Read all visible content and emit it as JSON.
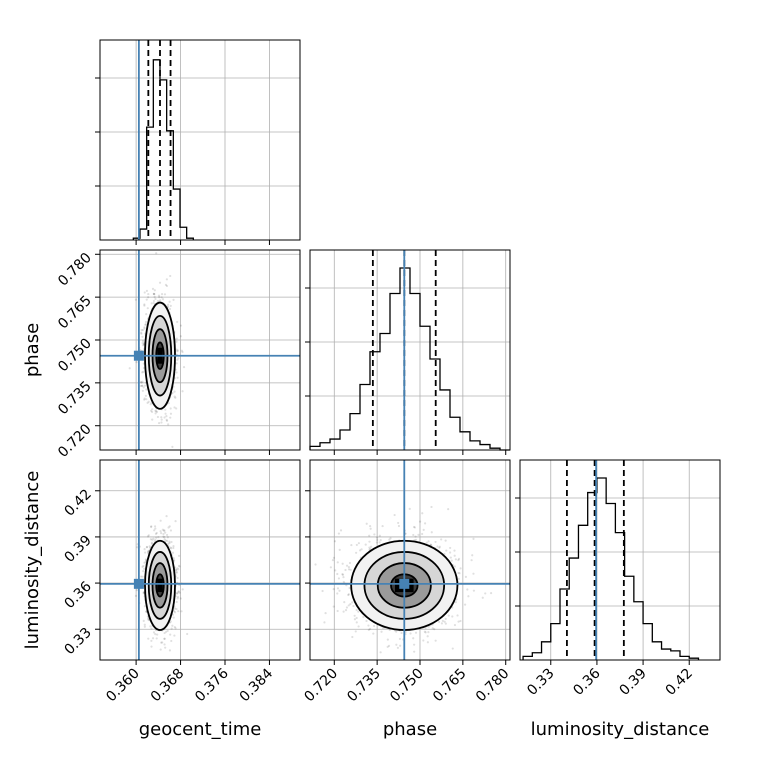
{
  "chart_data": {
    "type": "corner",
    "parameters": [
      "geocent_time",
      "phase",
      "luminosity_distance"
    ],
    "truths": {
      "geocent_time": 0.3605,
      "phase": 0.7445,
      "luminosity_distance": 0.3595
    },
    "truth_color": "#4682b4",
    "ranges": {
      "geocent_time": [
        0.3535,
        0.3895
      ],
      "phase": [
        0.7115,
        0.7815
      ],
      "luminosity_distance": [
        0.31,
        0.44
      ]
    },
    "ticks": {
      "geocent_time": [
        0.36,
        0.368,
        0.376,
        0.384
      ],
      "phase": [
        0.72,
        0.735,
        0.75,
        0.765,
        0.78
      ],
      "luminosity_distance": [
        0.33,
        0.36,
        0.39,
        0.42
      ]
    },
    "tick_labels": {
      "geocent_time": [
        "0.360",
        "0.368",
        "0.376",
        "0.384"
      ],
      "phase": [
        "0.720",
        "0.735",
        "0.750",
        "0.765",
        "0.780"
      ],
      "luminosity_distance": [
        "0.33",
        "0.36",
        "0.39",
        "0.42"
      ]
    },
    "row_tick_labels": {
      "phase": [
        "0.720",
        "0.735",
        "0.750",
        "0.765",
        "0.780"
      ],
      "luminosity_distance": [
        "0.33",
        "0.36",
        "0.39",
        "0.42"
      ]
    },
    "axis_labels": {
      "x": [
        "geocent_time",
        "phase",
        "luminosity_distance"
      ],
      "y": [
        "phase",
        "luminosity_distance"
      ]
    },
    "quantiles": {
      "geocent_time": [
        0.3622,
        0.3643,
        0.3662
      ],
      "phase": [
        0.7335,
        0.7445,
        0.7555
      ],
      "luminosity_distance": [
        0.3405,
        0.3585,
        0.3775
      ]
    },
    "histograms": {
      "geocent_time": {
        "bin_edges": [
          0.3595,
          0.3607,
          0.3619,
          0.3631,
          0.3643,
          0.3655,
          0.3667,
          0.3679,
          0.3691,
          0.3703
        ],
        "counts": [
          0.01,
          0.06,
          0.62,
          0.99,
          0.88,
          0.6,
          0.28,
          0.07,
          0.01
        ]
      },
      "phase": {
        "bin_edges": [
          0.7115,
          0.715,
          0.7185,
          0.722,
          0.7255,
          0.729,
          0.7325,
          0.736,
          0.7395,
          0.743,
          0.7465,
          0.75,
          0.7535,
          0.757,
          0.7605,
          0.764,
          0.7675,
          0.771,
          0.7745,
          0.778,
          0.7815
        ],
        "counts": [
          0.02,
          0.04,
          0.06,
          0.11,
          0.2,
          0.36,
          0.54,
          0.64,
          0.86,
          1.0,
          0.86,
          0.68,
          0.5,
          0.33,
          0.18,
          0.1,
          0.05,
          0.03,
          0.01,
          0.0
        ]
      },
      "luminosity_distance": {
        "bin_edges": [
          0.312,
          0.318,
          0.324,
          0.33,
          0.336,
          0.342,
          0.348,
          0.354,
          0.36,
          0.366,
          0.372,
          0.378,
          0.384,
          0.39,
          0.396,
          0.402,
          0.408,
          0.414,
          0.42,
          0.426
        ],
        "counts": [
          0.02,
          0.04,
          0.1,
          0.2,
          0.39,
          0.56,
          0.74,
          0.92,
          1.0,
          0.86,
          0.7,
          0.46,
          0.32,
          0.2,
          0.1,
          0.06,
          0.05,
          0.02,
          0.01
        ]
      }
    },
    "posterior": {
      "mean": {
        "geocent_time": 0.3643,
        "phase": 0.7445,
        "luminosity_distance": 0.3585
      },
      "std": {
        "geocent_time": 0.00135,
        "phase": 0.0093,
        "luminosity_distance": 0.0145
      },
      "contour_sigmas": [
        0.5,
        1.0,
        1.5,
        2.0
      ]
    },
    "grid": true,
    "legend": "none"
  }
}
